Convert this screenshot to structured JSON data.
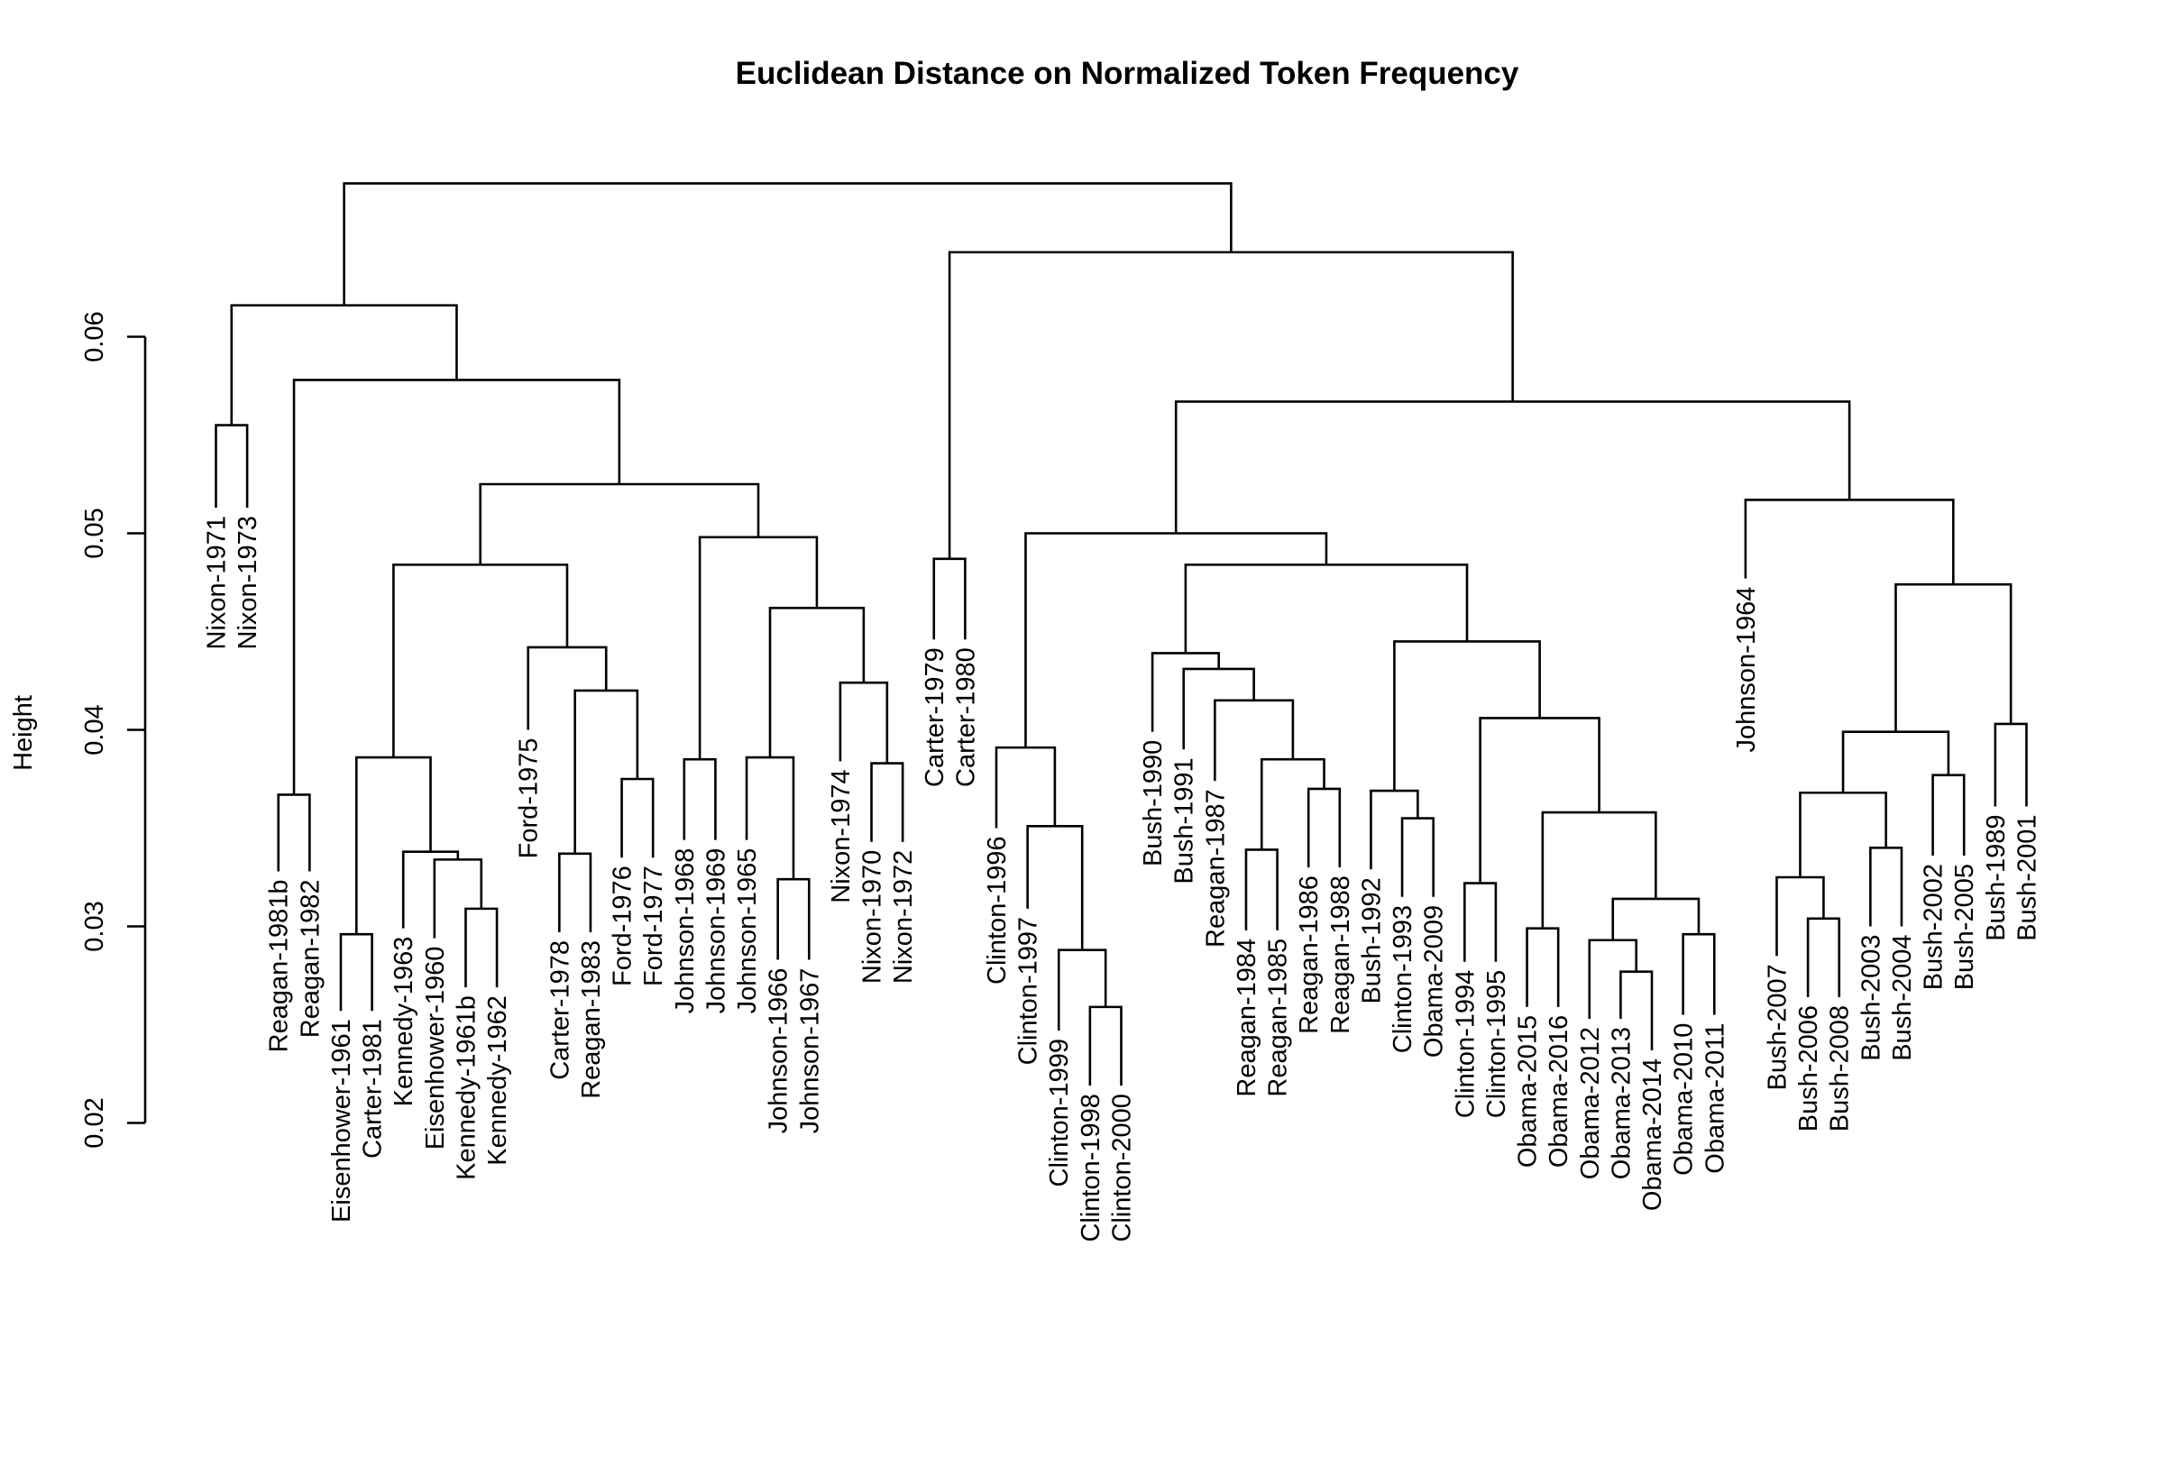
{
  "chart_data": {
    "type": "dendrogram",
    "title": "Euclidean Distance on Normalized Token Frequency",
    "ylabel": "Height",
    "ylim": [
      0.02,
      0.07
    ],
    "yticks": [
      {
        "value": 0.02,
        "label": "0.02"
      },
      {
        "value": 0.03,
        "label": "0.03"
      },
      {
        "value": 0.04,
        "label": "0.04"
      },
      {
        "value": 0.05,
        "label": "0.05"
      },
      {
        "value": 0.06,
        "label": "0.06"
      }
    ],
    "leaves": [
      {
        "label": "Nixon-1971",
        "height": 0.0513
      },
      {
        "label": "Nixon-1973",
        "height": 0.0513
      },
      {
        "label": "Reagan-1981b",
        "height": 0.0328
      },
      {
        "label": "Reagan-1982",
        "height": 0.0328
      },
      {
        "label": "Eisenhower-1961",
        "height": 0.0257
      },
      {
        "label": "Carter-1981",
        "height": 0.0257
      },
      {
        "label": "Kennedy-1963",
        "height": 0.0299
      },
      {
        "label": "Eisenhower-1960",
        "height": 0.0294
      },
      {
        "label": "Kennedy-1961b",
        "height": 0.0269
      },
      {
        "label": "Kennedy-1962",
        "height": 0.0269
      },
      {
        "label": "Ford-1975",
        "height": 0.04
      },
      {
        "label": "Carter-1978",
        "height": 0.0297
      },
      {
        "label": "Reagan-1983",
        "height": 0.0297
      },
      {
        "label": "Ford-1976",
        "height": 0.0335
      },
      {
        "label": "Ford-1977",
        "height": 0.0335
      },
      {
        "label": "Johnson-1968",
        "height": 0.0344
      },
      {
        "label": "Johnson-1969",
        "height": 0.0344
      },
      {
        "label": "Johnson-1965",
        "height": 0.0344
      },
      {
        "label": "Johnson-1966",
        "height": 0.0283
      },
      {
        "label": "Johnson-1967",
        "height": 0.0283
      },
      {
        "label": "Nixon-1974",
        "height": 0.0384
      },
      {
        "label": "Nixon-1970",
        "height": 0.0343
      },
      {
        "label": "Nixon-1972",
        "height": 0.0343
      },
      {
        "label": "Carter-1979",
        "height": 0.0446
      },
      {
        "label": "Carter-1980",
        "height": 0.0446
      },
      {
        "label": "Clinton-1996",
        "height": 0.035
      },
      {
        "label": "Clinton-1997",
        "height": 0.0309
      },
      {
        "label": "Clinton-1999",
        "height": 0.0247
      },
      {
        "label": "Clinton-1998",
        "height": 0.0219
      },
      {
        "label": "Clinton-2000",
        "height": 0.0219
      },
      {
        "label": "Bush-1990",
        "height": 0.0399
      },
      {
        "label": "Bush-1991",
        "height": 0.039
      },
      {
        "label": "Reagan-1987",
        "height": 0.0374
      },
      {
        "label": "Reagan-1984",
        "height": 0.0298
      },
      {
        "label": "Reagan-1985",
        "height": 0.0298
      },
      {
        "label": "Reagan-1986",
        "height": 0.033
      },
      {
        "label": "Reagan-1988",
        "height": 0.033
      },
      {
        "label": "Bush-1992",
        "height": 0.0329
      },
      {
        "label": "Clinton-1993",
        "height": 0.0315
      },
      {
        "label": "Obama-2009",
        "height": 0.0315
      },
      {
        "label": "Clinton-1994",
        "height": 0.0282
      },
      {
        "label": "Clinton-1995",
        "height": 0.0282
      },
      {
        "label": "Obama-2015",
        "height": 0.0259
      },
      {
        "label": "Obama-2016",
        "height": 0.0259
      },
      {
        "label": "Obama-2012",
        "height": 0.0253
      },
      {
        "label": "Obama-2013",
        "height": 0.0253
      },
      {
        "label": "Obama-2014",
        "height": 0.0237
      },
      {
        "label": "Obama-2010",
        "height": 0.0255
      },
      {
        "label": "Obama-2011",
        "height": 0.0255
      },
      {
        "label": "Johnson-1964",
        "height": 0.0477
      },
      {
        "label": "Bush-2007",
        "height": 0.0285
      },
      {
        "label": "Bush-2006",
        "height": 0.0264
      },
      {
        "label": "Bush-2008",
        "height": 0.0264
      },
      {
        "label": "Bush-2003",
        "height": 0.03
      },
      {
        "label": "Bush-2004",
        "height": 0.03
      },
      {
        "label": "Bush-2002",
        "height": 0.0336
      },
      {
        "label": "Bush-2005",
        "height": 0.0336
      },
      {
        "label": "Bush-1989",
        "height": 0.0361
      },
      {
        "label": "Bush-2001",
        "height": 0.0361
      }
    ],
    "merges": [
      {
        "id": "m1",
        "left": "Nixon-1971",
        "right": "Nixon-1973",
        "height": 0.0555
      },
      {
        "id": "m2",
        "left": "Reagan-1981b",
        "right": "Reagan-1982",
        "height": 0.0367
      },
      {
        "id": "m3",
        "left": "Eisenhower-1961",
        "right": "Carter-1981",
        "height": 0.0296
      },
      {
        "id": "m4",
        "left": "Kennedy-1961b",
        "right": "Kennedy-1962",
        "height": 0.0309
      },
      {
        "id": "m5",
        "left": "Eisenhower-1960",
        "right": "m4",
        "height": 0.0334
      },
      {
        "id": "m6",
        "left": "Kennedy-1963",
        "right": "m5",
        "height": 0.0338
      },
      {
        "id": "m7",
        "left": "m3",
        "right": "m6",
        "height": 0.0386
      },
      {
        "id": "m8",
        "left": "Carter-1978",
        "right": "Reagan-1983",
        "height": 0.0337
      },
      {
        "id": "m9",
        "left": "Ford-1976",
        "right": "Ford-1977",
        "height": 0.0375
      },
      {
        "id": "m10",
        "left": "m8",
        "right": "m9",
        "height": 0.042
      },
      {
        "id": "m11",
        "left": "Ford-1975",
        "right": "m10",
        "height": 0.0442
      },
      {
        "id": "m12",
        "left": "m7",
        "right": "m11",
        "height": 0.0484
      },
      {
        "id": "m13",
        "left": "Johnson-1968",
        "right": "Johnson-1969",
        "height": 0.0385
      },
      {
        "id": "m14",
        "left": "Johnson-1966",
        "right": "Johnson-1967",
        "height": 0.0324
      },
      {
        "id": "m15",
        "left": "Johnson-1965",
        "right": "m14",
        "height": 0.0386
      },
      {
        "id": "m16",
        "left": "Nixon-1970",
        "right": "Nixon-1972",
        "height": 0.0383
      },
      {
        "id": "m17",
        "left": "Nixon-1974",
        "right": "m16",
        "height": 0.0424
      },
      {
        "id": "m18",
        "left": "m15",
        "right": "m17",
        "height": 0.0462
      },
      {
        "id": "m19",
        "left": "m13",
        "right": "m18",
        "height": 0.0498
      },
      {
        "id": "m20",
        "left": "m12",
        "right": "m19",
        "height": 0.0525
      },
      {
        "id": "m21",
        "left": "m2",
        "right": "m20",
        "height": 0.0578
      },
      {
        "id": "m22",
        "left": "m1",
        "right": "m21",
        "height": 0.0616
      },
      {
        "id": "m23",
        "left": "Carter-1979",
        "right": "Carter-1980",
        "height": 0.0487
      },
      {
        "id": "m24",
        "left": "Clinton-1998",
        "right": "Clinton-2000",
        "height": 0.0259
      },
      {
        "id": "m25",
        "left": "Clinton-1999",
        "right": "m24",
        "height": 0.0288
      },
      {
        "id": "m26",
        "left": "Clinton-1997",
        "right": "m25",
        "height": 0.0351
      },
      {
        "id": "m27",
        "left": "Clinton-1996",
        "right": "m26",
        "height": 0.0391
      },
      {
        "id": "m28",
        "left": "Reagan-1984",
        "right": "Reagan-1985",
        "height": 0.0339
      },
      {
        "id": "m29",
        "left": "Reagan-1986",
        "right": "Reagan-1988",
        "height": 0.037
      },
      {
        "id": "m30",
        "left": "m28",
        "right": "m29",
        "height": 0.0385
      },
      {
        "id": "m31",
        "left": "Reagan-1987",
        "right": "m30",
        "height": 0.0415
      },
      {
        "id": "m32",
        "left": "Bush-1991",
        "right": "m31",
        "height": 0.0431
      },
      {
        "id": "m33",
        "left": "Bush-1990",
        "right": "m32",
        "height": 0.0439
      },
      {
        "id": "m34",
        "left": "Clinton-1993",
        "right": "Obama-2009",
        "height": 0.0355
      },
      {
        "id": "m35",
        "left": "Bush-1992",
        "right": "m34",
        "height": 0.0369
      },
      {
        "id": "m36",
        "left": "Clinton-1994",
        "right": "Clinton-1995",
        "height": 0.0322
      },
      {
        "id": "m37",
        "left": "Obama-2015",
        "right": "Obama-2016",
        "height": 0.0299
      },
      {
        "id": "m38",
        "left": "Obama-2013",
        "right": "Obama-2014",
        "height": 0.0277
      },
      {
        "id": "m39",
        "left": "Obama-2012",
        "right": "m38",
        "height": 0.0293
      },
      {
        "id": "m40",
        "left": "Obama-2010",
        "right": "Obama-2011",
        "height": 0.0296
      },
      {
        "id": "m41",
        "left": "m39",
        "right": "m40",
        "height": 0.0314
      },
      {
        "id": "m42",
        "left": "m37",
        "right": "m41",
        "height": 0.0358
      },
      {
        "id": "m43",
        "left": "m36",
        "right": "m42",
        "height": 0.0406
      },
      {
        "id": "m44",
        "left": "m35",
        "right": "m43",
        "height": 0.0445
      },
      {
        "id": "m45",
        "left": "m33",
        "right": "m44",
        "height": 0.0484
      },
      {
        "id": "m46",
        "left": "m27",
        "right": "m45",
        "height": 0.05
      },
      {
        "id": "m47",
        "left": "Bush-2006",
        "right": "Bush-2008",
        "height": 0.0304
      },
      {
        "id": "m48",
        "left": "Bush-2007",
        "right": "m47",
        "height": 0.0325
      },
      {
        "id": "m49",
        "left": "Bush-2003",
        "right": "Bush-2004",
        "height": 0.034
      },
      {
        "id": "m50",
        "left": "m48",
        "right": "m49",
        "height": 0.0368
      },
      {
        "id": "m51",
        "left": "Bush-2002",
        "right": "Bush-2005",
        "height": 0.0377
      },
      {
        "id": "m52",
        "left": "m50",
        "right": "m51",
        "height": 0.0399
      },
      {
        "id": "m53",
        "left": "Bush-1989",
        "right": "Bush-2001",
        "height": 0.0403
      },
      {
        "id": "m54",
        "left": "m52",
        "right": "m53",
        "height": 0.0474
      },
      {
        "id": "m55",
        "left": "Johnson-1964",
        "right": "m54",
        "height": 0.0517
      },
      {
        "id": "m56",
        "left": "m46",
        "right": "m55",
        "height": 0.0567
      },
      {
        "id": "m57",
        "left": "m23",
        "right": "m56",
        "height": 0.0643
      },
      {
        "id": "m58",
        "left": "m22",
        "right": "m57",
        "height": 0.0678
      }
    ]
  }
}
